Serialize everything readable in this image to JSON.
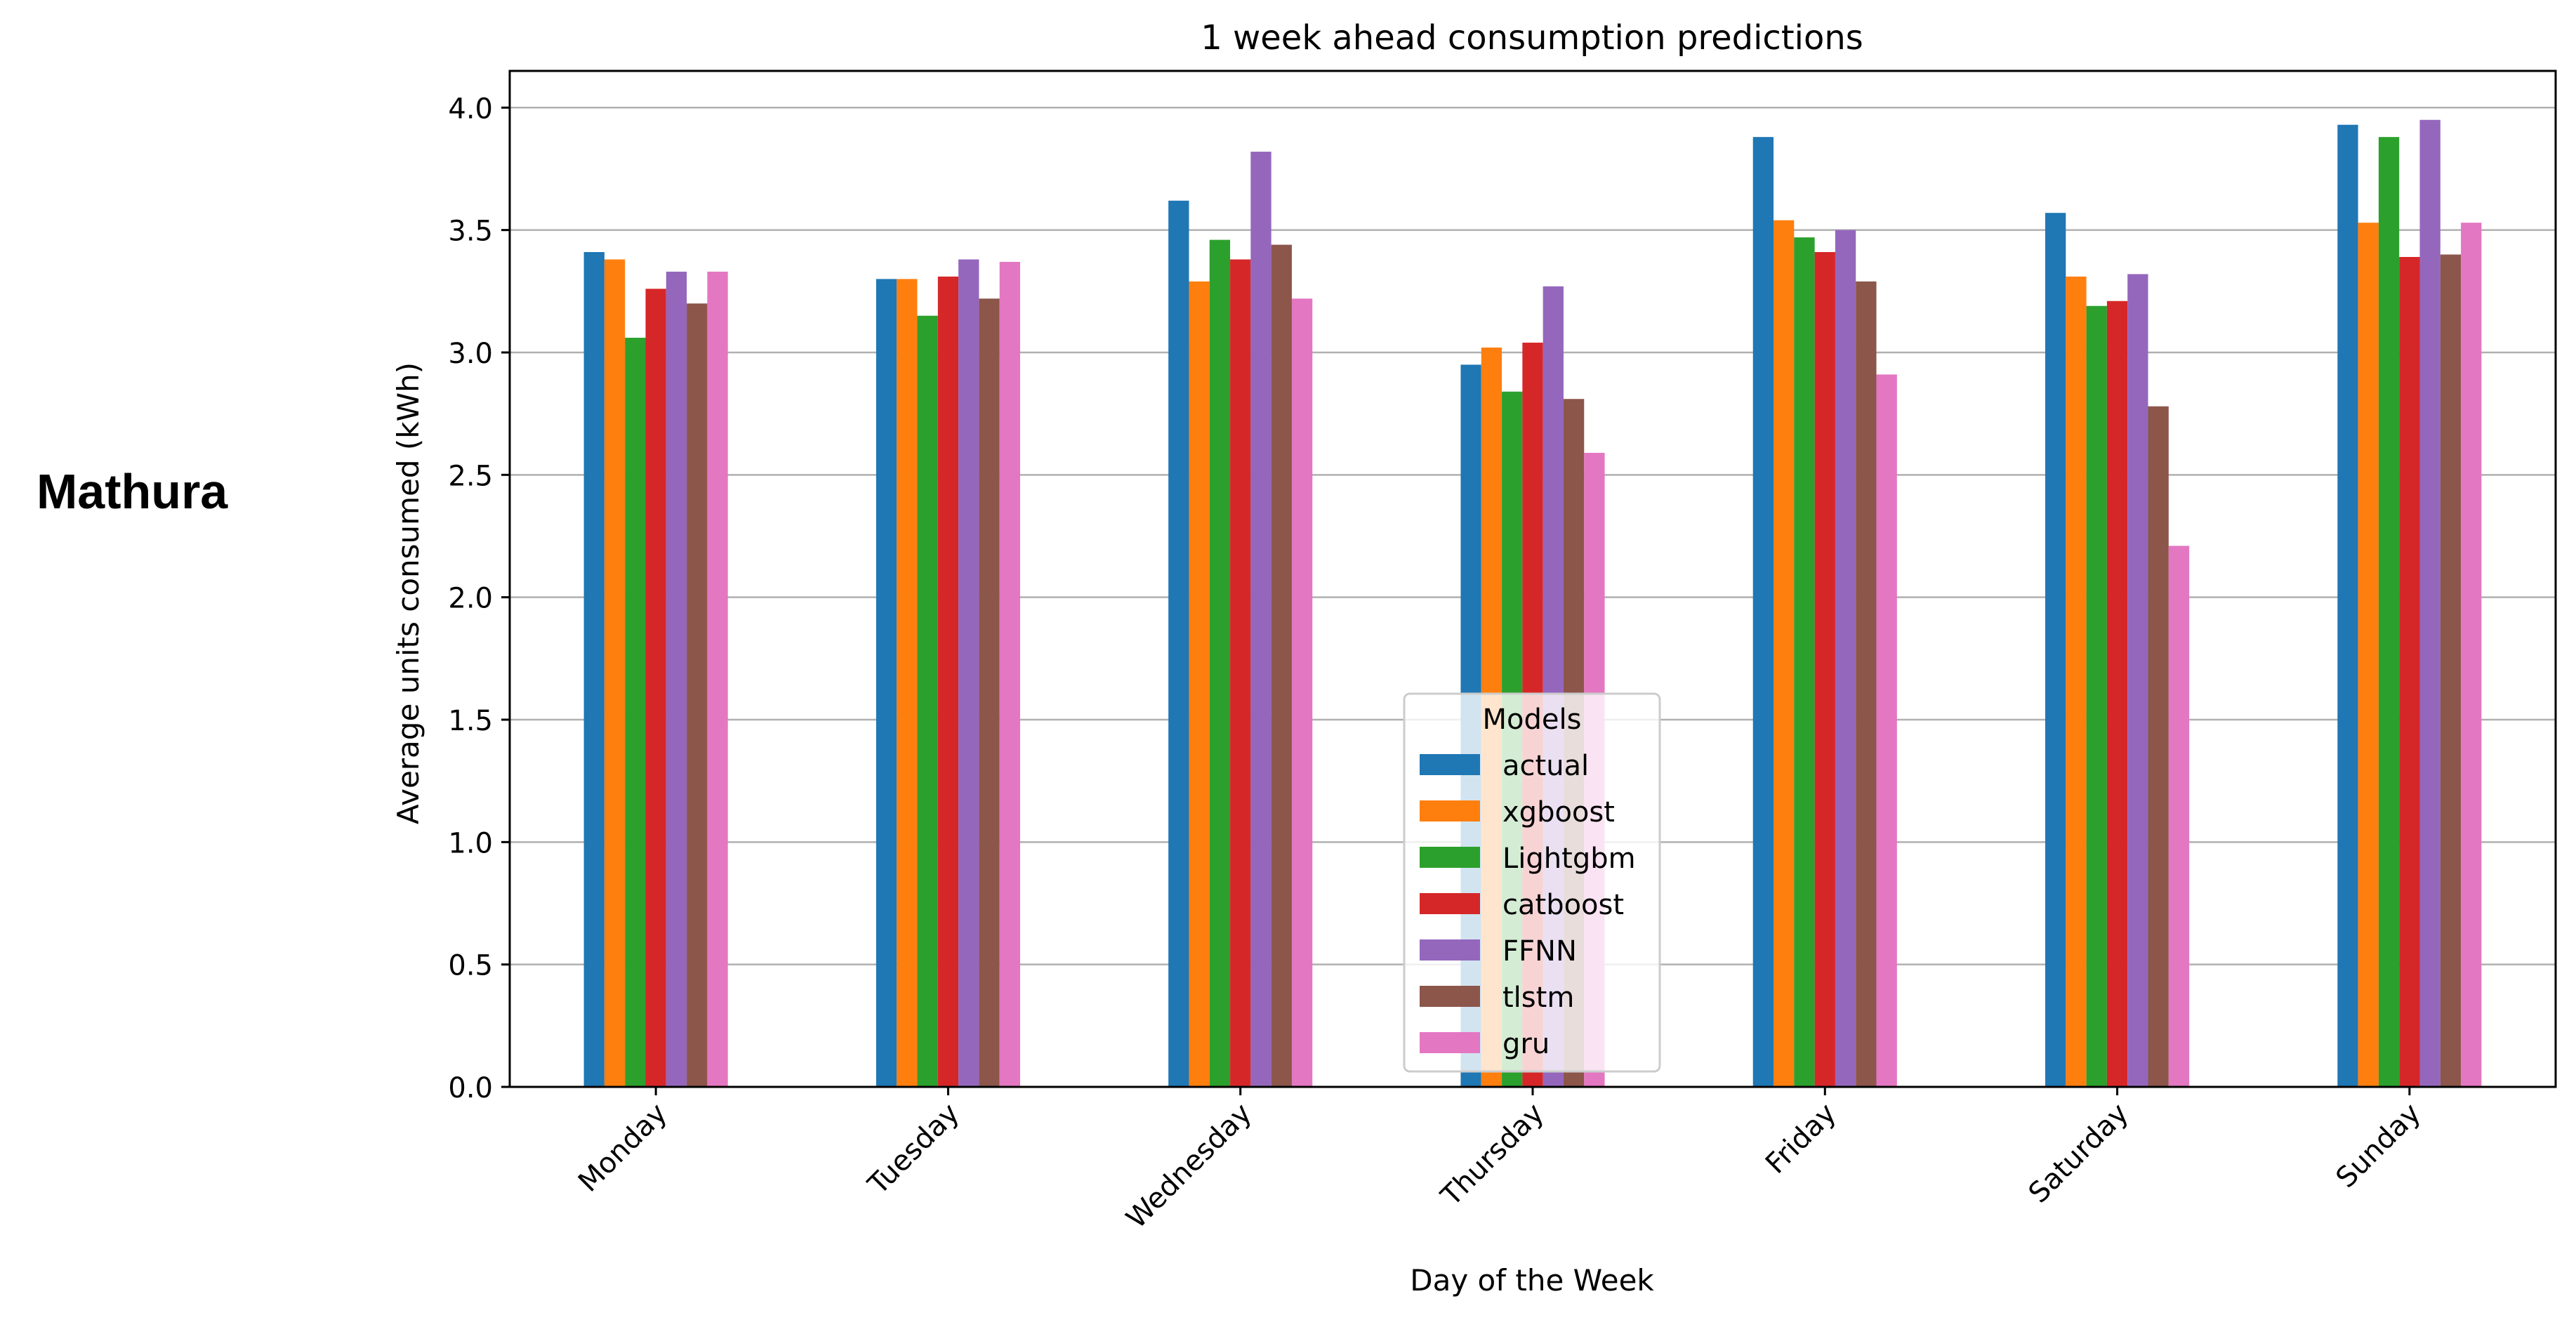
{
  "side_label": "Mathura",
  "colors": [
    "#1f77b4",
    "#ff7f0e",
    "#2ca02c",
    "#d62728",
    "#9467bd",
    "#8c564b",
    "#e377c2"
  ],
  "chart_data": {
    "type": "bar",
    "title": "1 week ahead consumption predictions",
    "xlabel": "Day of the Week",
    "ylabel": "Average units consumed (kWh)",
    "ylim": [
      0,
      4.15
    ],
    "yticks": [
      "0.0",
      "0.5",
      "1.0",
      "1.5",
      "2.0",
      "2.5",
      "3.0",
      "3.5",
      "4.0"
    ],
    "grid": "horizontal",
    "legend": {
      "title": "Models",
      "placement": "bottom-center"
    },
    "categories": [
      "Monday",
      "Tuesday",
      "Wednesday",
      "Thursday",
      "Friday",
      "Saturday",
      "Sunday"
    ],
    "series": [
      {
        "name": "actual",
        "values": [
          3.41,
          3.3,
          3.62,
          2.95,
          3.88,
          3.57,
          3.93
        ]
      },
      {
        "name": "xgboost",
        "values": [
          3.38,
          3.3,
          3.29,
          3.02,
          3.54,
          3.31,
          3.53
        ]
      },
      {
        "name": "Lightgbm",
        "values": [
          3.06,
          3.15,
          3.46,
          2.84,
          3.47,
          3.19,
          3.88
        ]
      },
      {
        "name": "catboost",
        "values": [
          3.26,
          3.31,
          3.38,
          3.04,
          3.41,
          3.21,
          3.39
        ]
      },
      {
        "name": "FFNN",
        "values": [
          3.33,
          3.38,
          3.82,
          3.27,
          3.5,
          3.32,
          3.95
        ]
      },
      {
        "name": "tlstm",
        "values": [
          3.2,
          3.22,
          3.44,
          2.81,
          3.29,
          2.78,
          3.4
        ]
      },
      {
        "name": "gru",
        "values": [
          3.33,
          3.37,
          3.22,
          2.59,
          2.91,
          2.21,
          3.53
        ]
      }
    ]
  }
}
